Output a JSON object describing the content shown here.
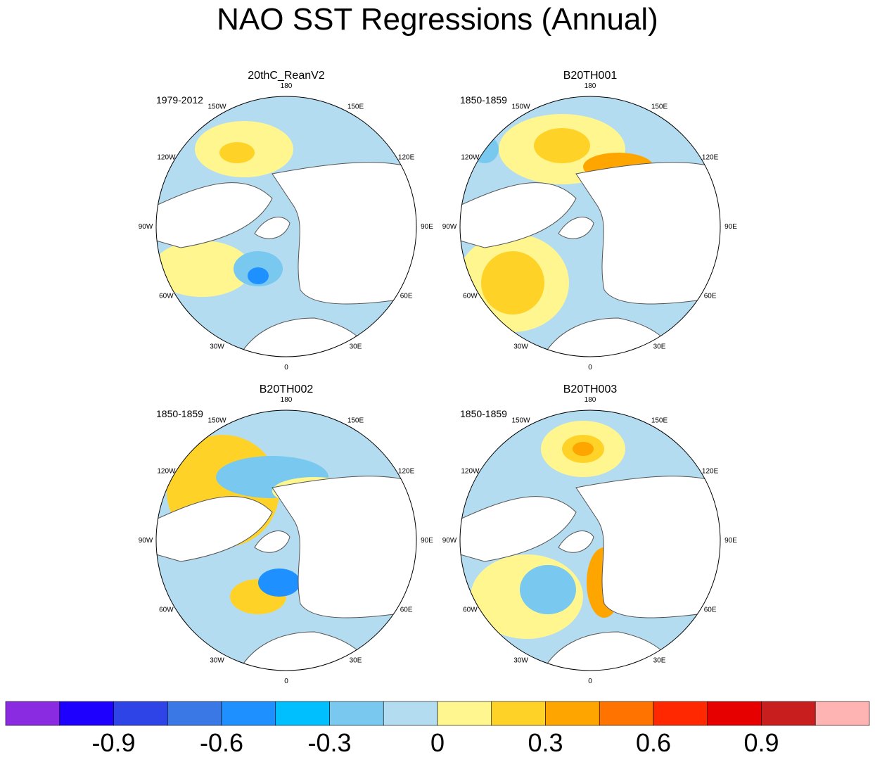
{
  "title": "NAO SST Regressions (Annual)",
  "panels": [
    {
      "title": "20thC_ReanV2",
      "period": "1979-2012"
    },
    {
      "title": "B20TH001",
      "period": "1850-1859"
    },
    {
      "title": "B20TH002",
      "period": "1850-1859"
    },
    {
      "title": "B20TH003",
      "period": "1850-1859"
    }
  ],
  "longitude_labels": [
    "180",
    "150E",
    "120E",
    "90E",
    "60E",
    "30E",
    "0",
    "30W",
    "60W",
    "90W",
    "120W",
    "150W"
  ],
  "colorbar": {
    "colors": [
      "#8a2be2",
      "#1e00ff",
      "#2e44e6",
      "#3a78e6",
      "#1e90ff",
      "#00bfff",
      "#78c8f0",
      "#b4dcf0",
      "#fff690",
      "#ffd228",
      "#ffa500",
      "#ff7300",
      "#ff2800",
      "#e60000",
      "#c81e1e",
      "#ffb4b4"
    ],
    "labels": [
      "-0.9",
      "-0.6",
      "-0.3",
      "0",
      "0.3",
      "0.6",
      "0.9"
    ]
  }
}
